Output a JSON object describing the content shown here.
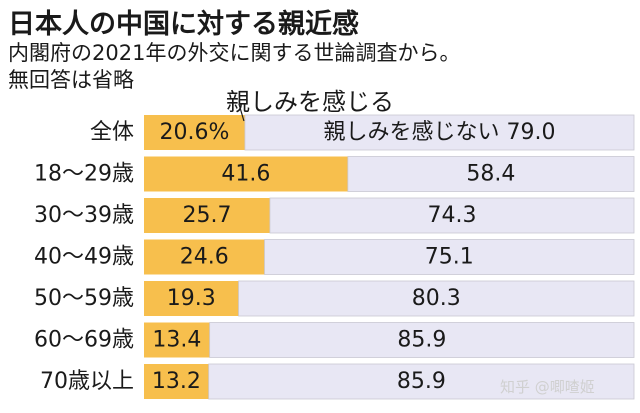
{
  "title": "日本人の中国に対する親近感",
  "subtitle_line1": "内閣府の2021年の外交に関する世論調査から。",
  "subtitle_line2": "無回答は省略",
  "watermark": "知乎 @唧喳姬",
  "colors": {
    "positive": "#f7bf4d",
    "negative": "#e8e7f4",
    "border": "#c9c9d3"
  },
  "chart_data": {
    "type": "bar",
    "orientation": "horizontal",
    "stacked": true,
    "percent": true,
    "categories": [
      "全体",
      "18〜29歳",
      "30〜39歳",
      "40〜49歳",
      "50〜59歳",
      "60〜69歳",
      "70歳以上"
    ],
    "series": [
      {
        "name": "親しみを感じる",
        "values": [
          20.6,
          41.6,
          25.7,
          24.6,
          19.3,
          13.4,
          13.2
        ]
      },
      {
        "name": "親しみを感じない",
        "values": [
          79.0,
          58.4,
          74.3,
          75.1,
          80.3,
          85.9,
          85.9
        ]
      }
    ],
    "overall_value_labels": [
      "20.6%",
      "親しみを感じない 79.0"
    ],
    "legend_callout": "親しみを感じる",
    "xlim": [
      0,
      100
    ]
  }
}
